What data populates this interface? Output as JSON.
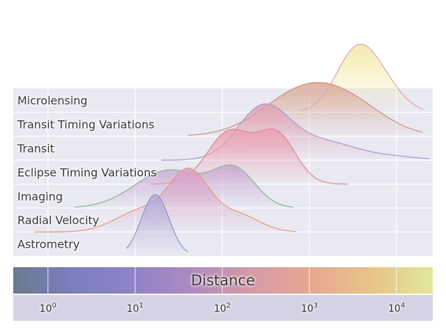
{
  "chart_data": {
    "type": "ridgeline",
    "title": "",
    "xlabel": "Distance",
    "xscale": "log",
    "xlim": [
      0.4,
      26000
    ],
    "grid": true,
    "x_ticks": [
      {
        "base": "10",
        "exp": "0",
        "value": 1
      },
      {
        "base": "10",
        "exp": "1",
        "value": 10
      },
      {
        "base": "10",
        "exp": "2",
        "value": 100
      },
      {
        "base": "10",
        "exp": "3",
        "value": 1000
      },
      {
        "base": "10",
        "exp": "4",
        "value": 10000
      }
    ],
    "colorbar_colors": [
      "#6a7a8c",
      "#7b7fc0",
      "#8f82c8",
      "#b08ac0",
      "#d79aa6",
      "#e6a890",
      "#e8c488",
      "#e0e79e"
    ],
    "series": [
      {
        "name": "Astrometry",
        "color": "#8c96cc",
        "fill": "#b4aad8",
        "range": [
          8,
          40
        ],
        "peaks": [
          [
            17,
            0.16,
            1.0
          ]
        ]
      },
      {
        "name": "Radial Velocity",
        "color": "#e59a86",
        "fill": "#d9a0c4",
        "range": [
          0.7,
          700
        ],
        "peaks": [
          [
            42,
            0.23,
            0.95
          ],
          [
            12,
            0.3,
            0.35
          ],
          [
            150,
            0.25,
            0.28
          ]
        ]
      },
      {
        "name": "Imaging",
        "color": "#87b79b",
        "fill": "#c9a8d2",
        "range": [
          2,
          650
        ],
        "peaks": [
          [
            25,
            0.4,
            0.62
          ],
          [
            140,
            0.24,
            0.58
          ]
        ]
      },
      {
        "name": "Eclipse Timing Variations",
        "color": "#d98c9c",
        "fill": "#eaa0b4",
        "range": [
          15,
          2800
        ],
        "peaks": [
          [
            120,
            0.25,
            0.85
          ],
          [
            420,
            0.22,
            0.8
          ]
        ]
      },
      {
        "name": "Transit",
        "color": "#a99cd0",
        "fill": "#e0a0b4",
        "range": [
          20,
          24000
        ],
        "peaks": [
          [
            300,
            0.3,
            0.88
          ],
          [
            1500,
            0.35,
            0.28
          ],
          [
            8000,
            0.35,
            0.06
          ]
        ]
      },
      {
        "name": "Transit Timing Variations",
        "color": "#c49a8e",
        "fill": "#dcaa98",
        "range": [
          40,
          20000
        ],
        "peaks": [
          [
            900,
            0.48,
            0.75
          ],
          [
            3500,
            0.4,
            0.3
          ]
        ]
      },
      {
        "name": "Microlensing",
        "color": "#e0a2c4",
        "fill": "#f2e8a4",
        "range": [
          800,
          20000
        ],
        "peaks": [
          [
            3500,
            0.24,
            1.0
          ],
          [
            7500,
            0.22,
            0.3
          ]
        ]
      }
    ]
  }
}
